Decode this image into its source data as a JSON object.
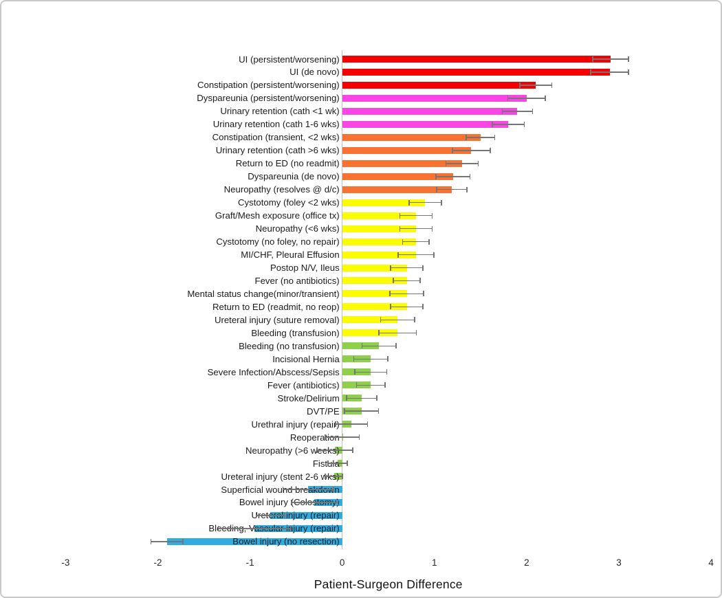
{
  "chart_data": {
    "type": "bar",
    "orientation": "horizontal",
    "title": "",
    "xlabel": "Patient-Surgeon Difference",
    "ylabel": "",
    "xlim": [
      -3,
      4
    ],
    "xticks": [
      "-3",
      "-2",
      "-1",
      "0",
      "1",
      "2",
      "3",
      "4"
    ],
    "grid": false,
    "legend": "none",
    "error_bars": "symmetric, gray caps",
    "group_colors": {
      "red": "#f40000",
      "magenta": "#f945e3",
      "orange": "#f87331",
      "yellow": "#fcfc00",
      "green": "#8ed04c",
      "blue": "#2fade3"
    },
    "error_bar_color": "#757575",
    "axis_line_color": "#bfbfbf",
    "bars": [
      {
        "label": "UI (persistent/worsening)",
        "value": 2.91,
        "error": 0.2,
        "group": "red"
      },
      {
        "label": "UI (de novo)",
        "value": 2.9,
        "error": 0.21,
        "group": "red"
      },
      {
        "label": "Constipation (persistent/worsening)",
        "value": 2.1,
        "error": 0.18,
        "group": "red"
      },
      {
        "label": "Dyspareunia (persistent/worsening)",
        "value": 2.0,
        "error": 0.21,
        "group": "magenta"
      },
      {
        "label": "Urinary retention (cath <1 wk)",
        "value": 1.9,
        "error": 0.17,
        "group": "magenta"
      },
      {
        "label": "Urinary retention (cath 1-6 wks)",
        "value": 1.8,
        "error": 0.18,
        "group": "magenta"
      },
      {
        "label": "Constipation (transient, <2 wks)",
        "value": 1.5,
        "error": 0.16,
        "group": "orange"
      },
      {
        "label": "Urinary retention (cath >6 wks)",
        "value": 1.4,
        "error": 0.21,
        "group": "orange"
      },
      {
        "label": "Return to ED (no readmit)",
        "value": 1.3,
        "error": 0.18,
        "group": "orange"
      },
      {
        "label": "Dyspareunia (de novo)",
        "value": 1.2,
        "error": 0.19,
        "group": "orange"
      },
      {
        "label": "Neuropathy (resolves @ d/c)",
        "value": 1.19,
        "error": 0.17,
        "group": "orange"
      },
      {
        "label": "Cystotomy (foley <2 wks)",
        "value": 0.9,
        "error": 0.18,
        "group": "yellow"
      },
      {
        "label": "Graft/Mesh exposure (office tx)",
        "value": 0.8,
        "error": 0.18,
        "group": "yellow"
      },
      {
        "label": "Neuropathy (<6 wks)",
        "value": 0.8,
        "error": 0.18,
        "group": "yellow"
      },
      {
        "label": "Cystotomy (no foley, no repair)",
        "value": 0.8,
        "error": 0.15,
        "group": "yellow"
      },
      {
        "label": "MI/CHF, Pleural Effusion",
        "value": 0.8,
        "error": 0.2,
        "group": "yellow"
      },
      {
        "label": "Postop N/V, Ileus",
        "value": 0.7,
        "error": 0.18,
        "group": "yellow"
      },
      {
        "label": "Fever (no antibiotics)",
        "value": 0.7,
        "error": 0.15,
        "group": "yellow"
      },
      {
        "label": "Mental status change(minor/transient)",
        "value": 0.7,
        "error": 0.19,
        "group": "yellow"
      },
      {
        "label": "Return to ED (readmit, no reop)",
        "value": 0.7,
        "error": 0.18,
        "group": "yellow"
      },
      {
        "label": "Ureteral injury (suture removal)",
        "value": 0.6,
        "error": 0.19,
        "group": "yellow"
      },
      {
        "label": "Bleeding (transfusion)",
        "value": 0.6,
        "error": 0.21,
        "group": "yellow"
      },
      {
        "label": "Bleeding (no transfusion)",
        "value": 0.4,
        "error": 0.19,
        "group": "green"
      },
      {
        "label": "Incisional Hernia",
        "value": 0.31,
        "error": 0.19,
        "group": "green"
      },
      {
        "label": "Severe Infection/Abscess/Sepsis",
        "value": 0.31,
        "error": 0.18,
        "group": "green"
      },
      {
        "label": "Fever (antibiotics)",
        "value": 0.31,
        "error": 0.16,
        "group": "green"
      },
      {
        "label": "Stroke/Delirium",
        "value": 0.21,
        "error": 0.17,
        "group": "green"
      },
      {
        "label": "DVT/PE",
        "value": 0.21,
        "error": 0.19,
        "group": "green"
      },
      {
        "label": "Urethral injury (repair)",
        "value": 0.1,
        "error": 0.18,
        "group": "green"
      },
      {
        "label": "Reoperation",
        "value": 0.0,
        "error": 0.19,
        "group": "green"
      },
      {
        "label": "Neuropathy (>6 weeks)",
        "value": -0.08,
        "error": 0.2,
        "group": "green"
      },
      {
        "label": "Fistula",
        "value": -0.05,
        "error": 0.11,
        "group": "green"
      },
      {
        "label": "Ureteral injury (stent 2-6 wks)",
        "value": -0.09,
        "error": 0.1,
        "group": "green"
      },
      {
        "label": "Superficial wound breakdown",
        "value": -0.37,
        "error": 0.28,
        "group": "blue"
      },
      {
        "label": "Bowel injury (Colostomy)",
        "value": -0.3,
        "error": 0.26,
        "group": "blue"
      },
      {
        "label": "Ureteral injury (repair)",
        "value": -0.78,
        "error": 0.16,
        "group": "blue"
      },
      {
        "label": "Bleeding, Vascular injury (repair)",
        "value": -0.95,
        "error": 0.4,
        "group": "blue"
      },
      {
        "label": "Bowel injury (no resection)",
        "value": -1.9,
        "error": 0.18,
        "group": "blue"
      }
    ]
  }
}
